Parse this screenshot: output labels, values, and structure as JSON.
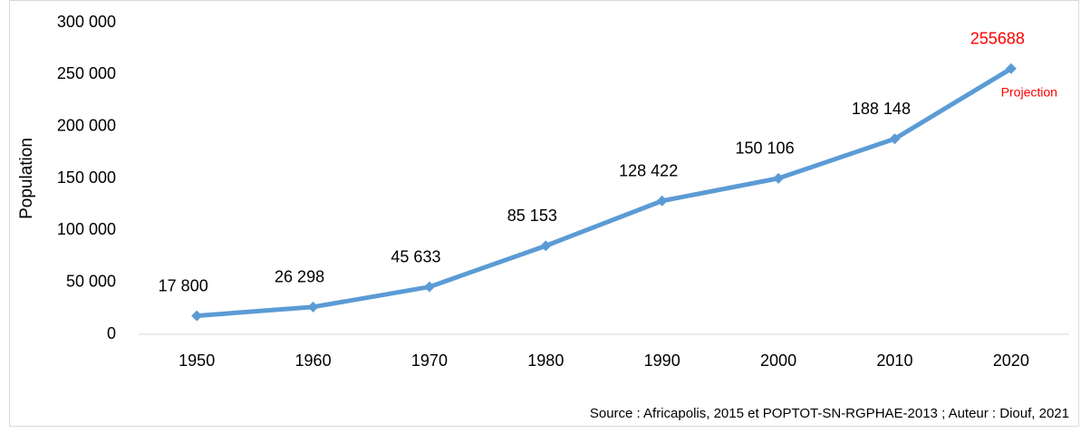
{
  "chart_data": {
    "type": "line",
    "y_label": "Population",
    "categories": [
      "1950",
      "1960",
      "1970",
      "1980",
      "1990",
      "2000",
      "2010",
      "2020"
    ],
    "series": [
      {
        "color": "#5b9bd5",
        "values": [
          17800,
          26298,
          45633,
          85153,
          128422,
          150106,
          188148,
          255688
        ],
        "value_labels": [
          "17 800",
          "26 298",
          "45 633",
          "85 153",
          "128 422",
          "150 106",
          "188 148",
          "255688"
        ],
        "value_label_colors": [
          "#000000",
          "#000000",
          "#000000",
          "#000000",
          "#000000",
          "#000000",
          "#000000",
          "#ff0000"
        ]
      }
    ],
    "ylim": [
      0,
      300000
    ],
    "yticks": [
      0,
      {
        "value": 50000,
        "label": "50 000"
      },
      {
        "value": 100000,
        "label": "100 000"
      },
      {
        "value": 150000,
        "label": "150 000"
      },
      {
        "value": 200000,
        "label": "200 000"
      },
      {
        "value": 250000,
        "label": "250 000"
      },
      {
        "value": 300000,
        "label": "300 000"
      }
    ],
    "grid": false,
    "annotation": {
      "text": "Projection",
      "color": "#ff0000"
    },
    "source": "Source : Africapolis, 2015 et POPTOT-SN-RGPHAE-2013 ; Auteur : Diouf, 2021"
  }
}
